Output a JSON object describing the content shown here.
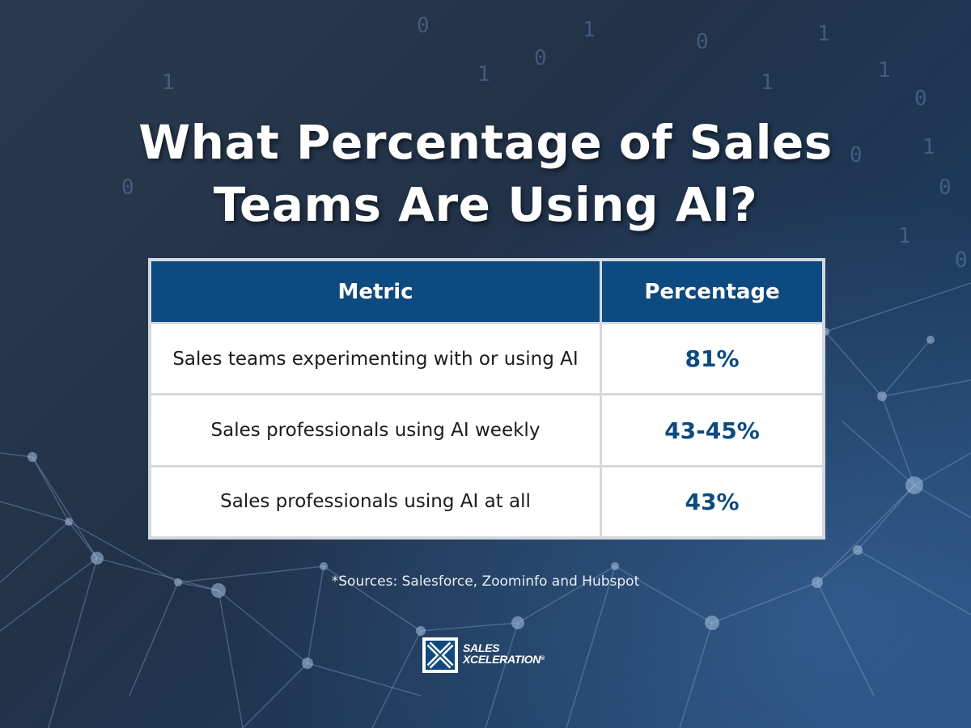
{
  "title": {
    "line1": "What Percentage of Sales",
    "line2": "Teams Are Using AI?"
  },
  "table": {
    "headers": [
      "Metric",
      "Percentage"
    ],
    "rows": [
      {
        "metric": "Sales teams experimenting with or using AI",
        "percentage": "81%"
      },
      {
        "metric": "Sales professionals using AI weekly",
        "percentage": "43-45%"
      },
      {
        "metric": "Sales professionals using AI at all",
        "percentage": "43%"
      }
    ]
  },
  "sources": "*Sources: Salesforce, Zoominfo and Hubspot",
  "logo": {
    "line1": "SALES",
    "line2": "XCELERATION",
    "registered": "®"
  },
  "colors": {
    "header_background": "#0d4a80",
    "percentage_text": "#0d4a80",
    "background": "#223248"
  },
  "background_decoration": {
    "binary_glyphs": [
      "0",
      "1"
    ]
  }
}
